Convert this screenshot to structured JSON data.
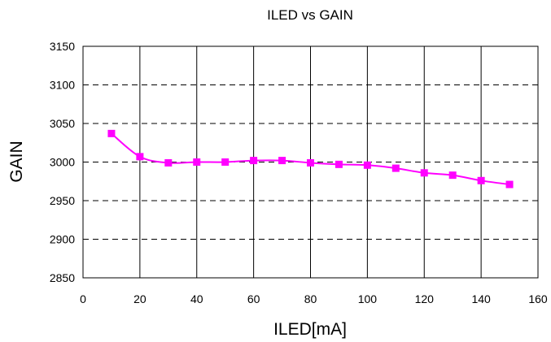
{
  "chart_data": {
    "type": "line",
    "title": "ILED vs GAIN",
    "xlabel": "ILED[mA]",
    "ylabel": "GAIN",
    "xlim": [
      0,
      160
    ],
    "ylim": [
      2850,
      3150
    ],
    "xticks": [
      0,
      20,
      40,
      60,
      80,
      100,
      120,
      140,
      160
    ],
    "yticks": [
      2850,
      2900,
      2950,
      3000,
      3050,
      3100,
      3150
    ],
    "grid": {
      "x": "solid",
      "y": "dashed"
    },
    "legend": "none",
    "series": [
      {
        "color": "#ff00ff",
        "marker": "square",
        "x": [
          10,
          20,
          30,
          40,
          50,
          60,
          70,
          80,
          90,
          100,
          110,
          120,
          130,
          140,
          150
        ],
        "y": [
          3037,
          3007,
          2999,
          3000,
          3000,
          3002,
          3002,
          2999,
          2997,
          2996,
          2992,
          2986,
          2983,
          2976,
          2971
        ]
      }
    ]
  }
}
